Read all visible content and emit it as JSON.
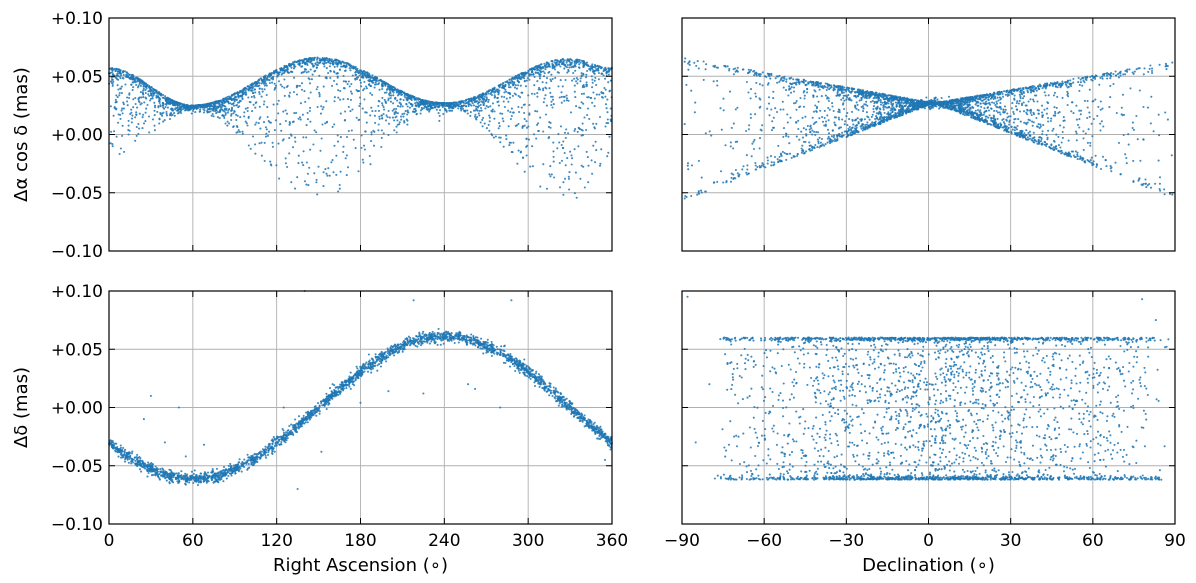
{
  "figure": {
    "marker_color": "#1f77b4",
    "grid_color": "#b0b0b0"
  },
  "chart_data": [
    {
      "type": "scatter",
      "panel": "top-left",
      "xlabel": "",
      "ylabel": "Δα cos δ (mas)",
      "xlim": [
        0,
        360
      ],
      "ylim": [
        -0.1,
        0.1
      ],
      "x_ticks": [
        0,
        60,
        120,
        180,
        240,
        300,
        360
      ],
      "x_tick_labels": [
        "",
        "",
        "",
        "",
        "",
        "",
        ""
      ],
      "y_ticks": [
        -0.1,
        -0.05,
        0.0,
        0.05,
        0.1
      ],
      "y_tick_labels": [
        "−0.10",
        "−0.05",
        "+0.00",
        "+0.05",
        "+0.10"
      ],
      "grid": true,
      "pattern": {
        "kind": "spread_envelope",
        "description_points": [
          {
            "x": 0,
            "upper": 0.057,
            "lower": -0.02
          },
          {
            "x": 60,
            "upper": 0.025,
            "lower": 0.02
          },
          {
            "x": 150,
            "upper": 0.066,
            "lower": -0.055
          },
          {
            "x": 240,
            "upper": 0.027,
            "lower": 0.024
          },
          {
            "x": 330,
            "upper": 0.065,
            "lower": -0.057
          },
          {
            "x": 360,
            "upper": 0.057,
            "lower": -0.02
          }
        ],
        "n_points": 3200
      }
    },
    {
      "type": "scatter",
      "panel": "top-right",
      "xlabel": "",
      "ylabel": "",
      "xlim": [
        -90,
        90
      ],
      "ylim": [
        -0.1,
        0.1
      ],
      "x_ticks": [
        -90,
        -60,
        -30,
        0,
        30,
        60,
        90
      ],
      "x_tick_labels": [
        "",
        "",
        "",
        "",
        "",
        "",
        ""
      ],
      "y_ticks": [
        -0.1,
        -0.05,
        0.0,
        0.05,
        0.1
      ],
      "y_tick_labels": [
        "",
        "",
        "",
        "",
        ""
      ],
      "grid": true,
      "pattern": {
        "kind": "bowtie",
        "pivot": {
          "x": 2,
          "y": 0.027
        },
        "endpoints": [
          {
            "x": -90,
            "upper": 0.066,
            "lower": -0.057
          },
          {
            "x": 90,
            "upper": 0.063,
            "lower": -0.055
          }
        ],
        "n_points": 3000
      }
    },
    {
      "type": "scatter",
      "panel": "bottom-left",
      "xlabel": "Right Ascension (∘)",
      "ylabel": "Δδ (mas)",
      "xlim": [
        0,
        360
      ],
      "ylim": [
        -0.1,
        0.1
      ],
      "x_ticks": [
        0,
        60,
        120,
        180,
        240,
        300,
        360
      ],
      "x_tick_labels": [
        "0",
        "60",
        "120",
        "180",
        "240",
        "300",
        "360"
      ],
      "y_ticks": [
        -0.1,
        -0.05,
        0.0,
        0.05,
        0.1
      ],
      "y_tick_labels": [
        "−0.10",
        "−0.05",
        "+0.00",
        "+0.05",
        "+0.10"
      ],
      "grid": true,
      "pattern": {
        "kind": "sinusoid",
        "amplitude": 0.061,
        "phase_deg": 150,
        "band_width": 0.0025,
        "n_points": 2600
      },
      "outliers": [
        {
          "x": 25,
          "y": -0.01
        },
        {
          "x": 30,
          "y": 0.01
        },
        {
          "x": 40,
          "y": -0.03
        },
        {
          "x": 50,
          "y": 0.0
        },
        {
          "x": 55,
          "y": -0.042
        },
        {
          "x": 68,
          "y": -0.032
        },
        {
          "x": 95,
          "y": -0.055
        },
        {
          "x": 125,
          "y": 0.0
        },
        {
          "x": 140,
          "y": 0.1
        },
        {
          "x": 135,
          "y": -0.07
        },
        {
          "x": 152,
          "y": -0.038
        },
        {
          "x": 160,
          "y": 0.02
        },
        {
          "x": 173,
          "y": 0.03
        },
        {
          "x": 180,
          "y": 0.004
        },
        {
          "x": 200,
          "y": 0.014
        },
        {
          "x": 218,
          "y": 0.092
        },
        {
          "x": 225,
          "y": 0.012
        },
        {
          "x": 257,
          "y": 0.02
        },
        {
          "x": 262,
          "y": 0.016
        },
        {
          "x": 280,
          "y": 0.0
        },
        {
          "x": 288,
          "y": 0.092
        },
        {
          "x": 355,
          "y": -0.045
        }
      ]
    },
    {
      "type": "scatter",
      "panel": "bottom-right",
      "xlabel": "Declination (∘)",
      "ylabel": "",
      "xlim": [
        -90,
        90
      ],
      "ylim": [
        -0.1,
        0.1
      ],
      "x_ticks": [
        -90,
        -60,
        -30,
        0,
        30,
        60,
        90
      ],
      "x_tick_labels": [
        "−90",
        "−60",
        "−30",
        "0",
        "30",
        "60",
        "90"
      ],
      "y_ticks": [
        -0.1,
        -0.05,
        0.0,
        0.05,
        0.1
      ],
      "y_tick_labels": [
        "",
        "",
        "",
        "",
        ""
      ],
      "grid": true,
      "pattern": {
        "kind": "uniform_band",
        "upper": 0.06,
        "lower": -0.062,
        "edge_weighted": true,
        "n_points": 3200
      },
      "outliers": [
        {
          "x": -88,
          "y": 0.095
        },
        {
          "x": 78,
          "y": 0.093
        },
        {
          "x": 83,
          "y": 0.075
        },
        {
          "x": -85,
          "y": -0.03
        },
        {
          "x": -80,
          "y": 0.02
        }
      ]
    }
  ]
}
